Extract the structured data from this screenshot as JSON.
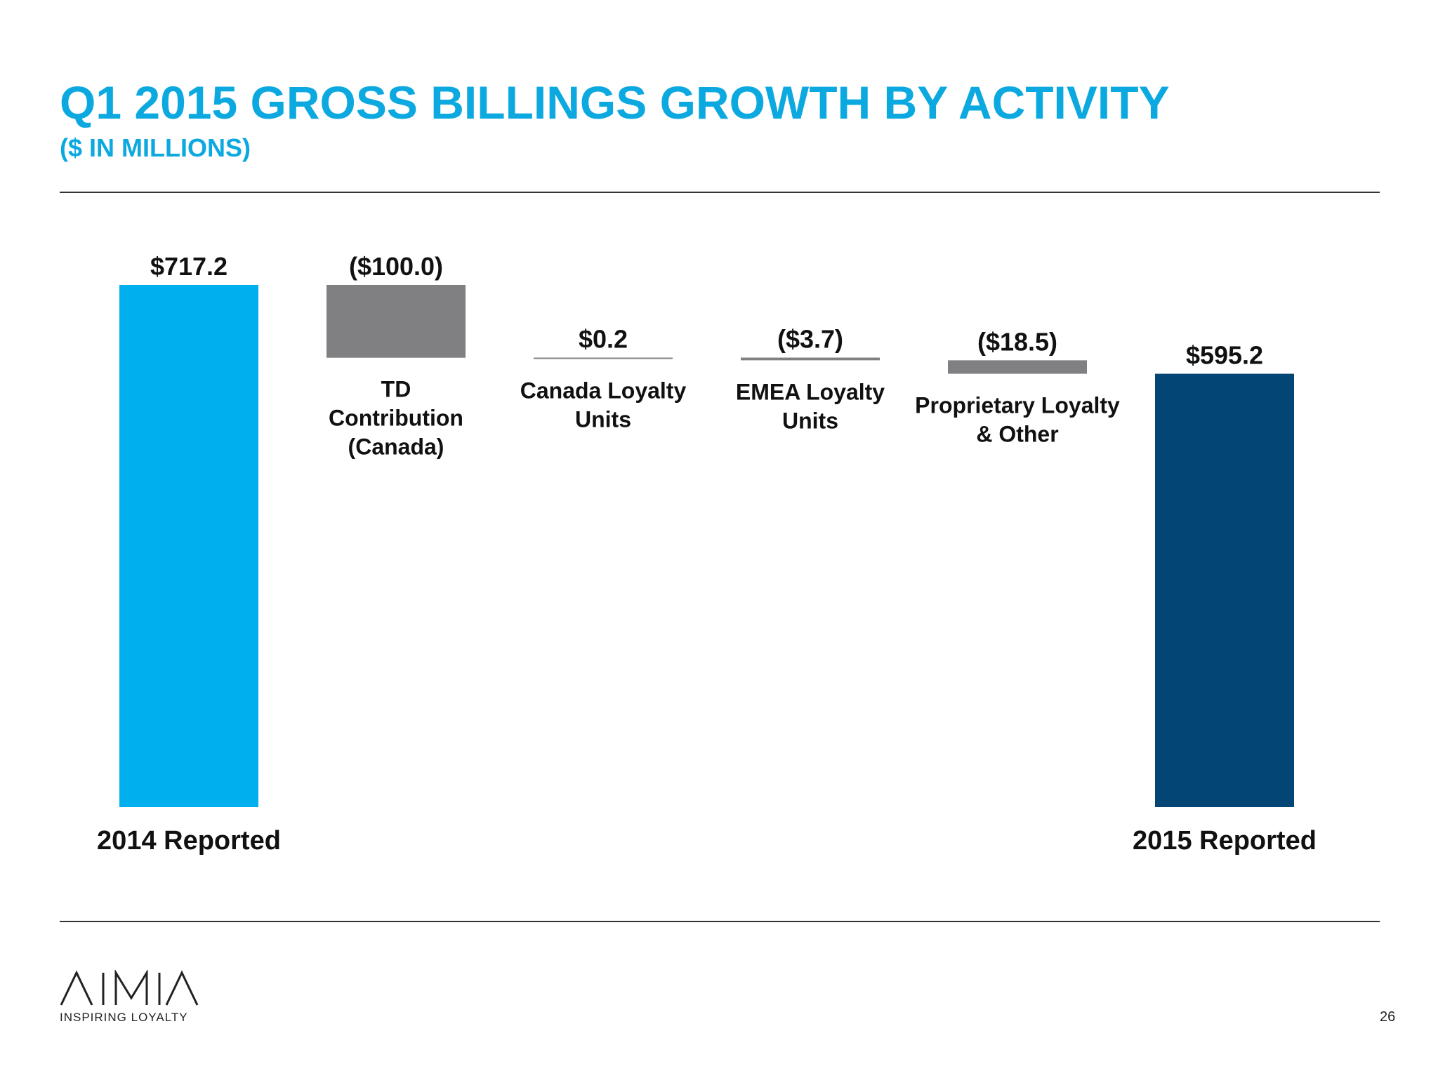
{
  "title": "Q1 2015 GROSS BILLINGS GROWTH BY ACTIVITY",
  "subtitle": "($ IN MILLIONS)",
  "page_number": "26",
  "logo": {
    "wordmark": "AIMIA",
    "tagline": "INSPIRING LOYALTY"
  },
  "colors": {
    "title": "#0ca9e0",
    "start_bar": "#00b0ee",
    "end_bar": "#034574",
    "change_bar": "#808083"
  },
  "chart_data": {
    "type": "bar",
    "subtype": "waterfall",
    "categories": [
      "2014 Reported",
      "TD Contribution (Canada)",
      "Canada Loyalty Units",
      "EMEA Loyalty Units",
      "Proprietary Loyalty & Other",
      "2015 Reported"
    ],
    "category_label_lines": [
      [
        "2014 Reported"
      ],
      [
        "TD",
        "Contribution",
        "(Canada)"
      ],
      [
        "Canada Loyalty",
        "Units"
      ],
      [
        "EMEA Loyalty",
        "Units"
      ],
      [
        "Proprietary Loyalty",
        "& Other"
      ],
      [
        "2015 Reported"
      ]
    ],
    "values": [
      717.2,
      -100.0,
      0.2,
      -3.7,
      -18.5,
      595.2
    ],
    "bar_kinds": [
      "total",
      "delta",
      "delta",
      "delta",
      "delta",
      "total"
    ],
    "data_labels": [
      "$717.2",
      "($100.0)",
      "$0.2",
      "($3.7)",
      "($18.5)",
      "$595.2"
    ],
    "ylim": [
      0,
      717.2
    ],
    "grid": false,
    "legend": "none"
  }
}
